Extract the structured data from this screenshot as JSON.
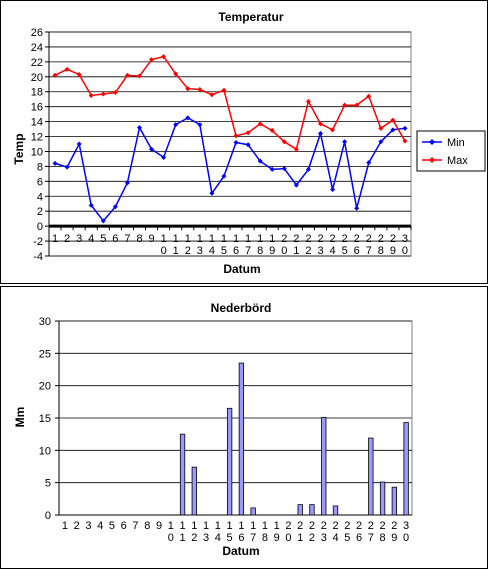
{
  "charts": {
    "temperature": {
      "title": "Temperatur",
      "ylabel": "Temp",
      "xlabel": "Datum",
      "legend": {
        "min_label": "Min",
        "max_label": "Max"
      }
    },
    "precipitation": {
      "title": "Nederbörd",
      "ylabel": "Mm",
      "xlabel": "Datum"
    }
  },
  "chart_data": [
    {
      "type": "line",
      "title": "Temperatur",
      "xlabel": "Datum",
      "ylabel": "Temp",
      "ylim": [
        -4,
        26
      ],
      "ytick_step": 2,
      "grid": true,
      "legend_position": "right",
      "categories": [
        "1",
        "2",
        "3",
        "4",
        "5",
        "6",
        "7",
        "8",
        "9",
        "10",
        "11",
        "12",
        "13",
        "14",
        "15",
        "16",
        "17",
        "18",
        "19",
        "20",
        "21",
        "22",
        "23",
        "24",
        "25",
        "26",
        "27",
        "28",
        "29",
        "30"
      ],
      "series": [
        {
          "name": "Min",
          "color": "#0000ff",
          "values": [
            8.4,
            7.9,
            11.0,
            2.8,
            0.7,
            2.6,
            5.8,
            13.2,
            10.3,
            9.2,
            13.6,
            14.5,
            13.6,
            4.4,
            6.7,
            11.2,
            10.9,
            8.7,
            7.6,
            7.7,
            5.5,
            7.6,
            12.4,
            4.9,
            11.3,
            2.4,
            8.5,
            11.3,
            12.9,
            13.1
          ]
        },
        {
          "name": "Max",
          "color": "#ff0000",
          "values": [
            20.2,
            21.0,
            20.3,
            17.5,
            17.7,
            17.9,
            20.2,
            20.1,
            22.3,
            22.7,
            20.4,
            18.4,
            18.3,
            17.6,
            18.2,
            12.1,
            12.5,
            13.7,
            12.8,
            11.3,
            10.3,
            16.7,
            13.7,
            12.9,
            16.2,
            16.2,
            17.4,
            13.1,
            14.2,
            11.4
          ]
        }
      ]
    },
    {
      "type": "bar",
      "title": "Nederbörd",
      "xlabel": "Datum",
      "ylabel": "Mm",
      "ylim": [
        0,
        30
      ],
      "ytick_step": 5,
      "grid": true,
      "bar_color": "#9999ff",
      "categories": [
        "1",
        "2",
        "3",
        "4",
        "5",
        "6",
        "7",
        "8",
        "9",
        "10",
        "11",
        "12",
        "13",
        "14",
        "15",
        "16",
        "17",
        "18",
        "19",
        "20",
        "21",
        "22",
        "23",
        "24",
        "25",
        "26",
        "27",
        "28",
        "29",
        "30"
      ],
      "values": [
        0,
        0,
        0,
        0,
        0,
        0,
        0,
        0,
        0,
        0,
        12.5,
        7.4,
        0,
        0,
        16.5,
        23.5,
        1.1,
        0,
        0,
        0,
        1.6,
        1.6,
        15.1,
        1.4,
        0,
        0,
        11.9,
        5.1,
        4.3,
        14.3
      ]
    }
  ]
}
